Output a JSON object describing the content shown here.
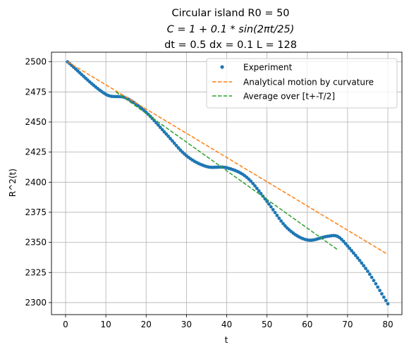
{
  "chart_data": {
    "type": "line",
    "title_lines": [
      "Circular island R0 = 50",
      "C = 1 + 0.1 * sin(2πt/25)",
      "dt = 0.5 dx = 0.1 L = 128"
    ],
    "xlabel": "t",
    "ylabel": "R^2(t)",
    "xlim": [
      -3.5,
      83.5
    ],
    "ylim": [
      2290,
      2508
    ],
    "xticks": [
      0,
      10,
      20,
      30,
      40,
      50,
      60,
      70,
      80
    ],
    "yticks": [
      2300,
      2325,
      2350,
      2375,
      2400,
      2425,
      2450,
      2475,
      2500
    ],
    "grid": true,
    "legend_position": "top-right",
    "series": [
      {
        "name": "Experiment",
        "style": "markers",
        "color": "#1f77b4",
        "t_start": 0.5,
        "t_end": 80,
        "t_step": 0.5,
        "x": [
          0.5,
          10,
          15,
          20,
          25,
          30,
          35,
          40,
          45,
          50,
          55,
          60,
          65,
          67.5,
          70,
          75,
          80
        ],
        "y": [
          2500,
          2473,
          2470,
          2458,
          2440,
          2422,
          2413,
          2412,
          2404,
          2384,
          2362,
          2352,
          2355,
          2355,
          2347,
          2326,
          2299
        ]
      },
      {
        "name": "Analytical motion by curvature",
        "style": "dashed",
        "color": "#ff7f0e",
        "x": [
          0.5,
          80
        ],
        "y": [
          2500,
          2340
        ]
      },
      {
        "name": "Average over [t+-T/2]",
        "style": "dashed",
        "color": "#2ca02c",
        "x": [
          12.5,
          67.5
        ],
        "y": [
          2475,
          2344
        ]
      }
    ]
  }
}
